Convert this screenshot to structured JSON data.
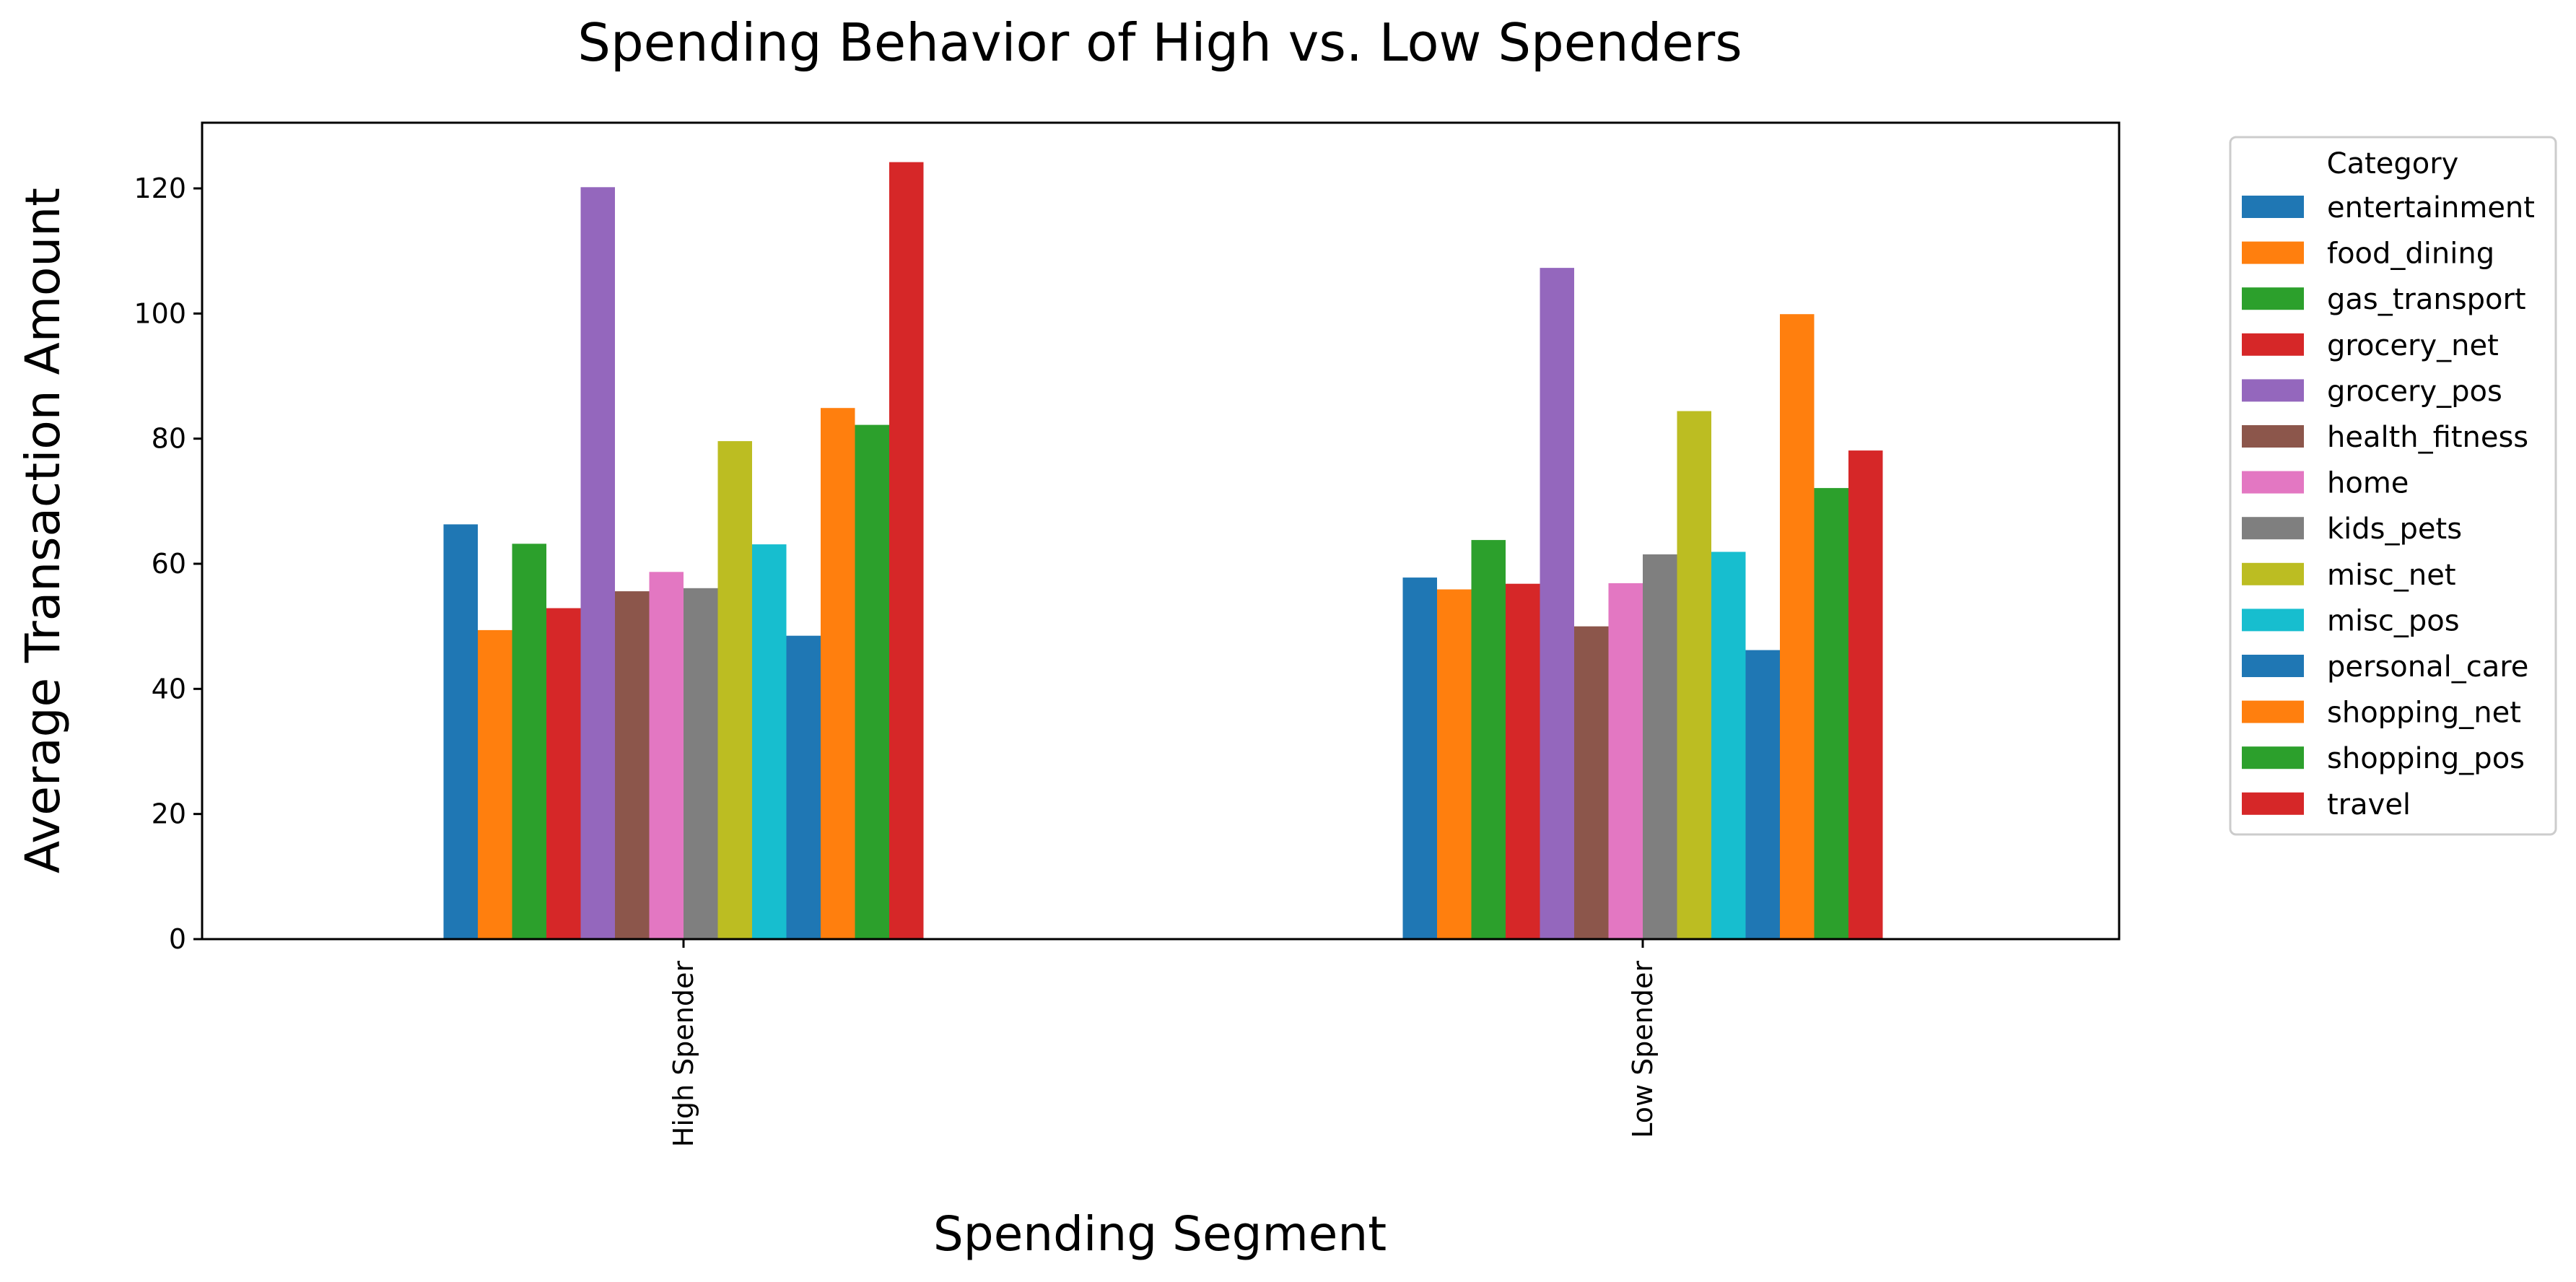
{
  "chart_data": {
    "type": "bar",
    "title": "Spending Behavior of High vs. Low Spenders",
    "xlabel": "Spending Segment",
    "ylabel": "Average Transaction Amount",
    "categories": [
      "High Spender",
      "Low Spender"
    ],
    "yticks": [
      "0",
      "20",
      "40",
      "60",
      "80",
      "100",
      "120"
    ],
    "ylim": [
      0,
      130.5
    ],
    "grid": false,
    "legend": {
      "title": "Category",
      "placement": "outside right"
    },
    "series": [
      {
        "name": "entertainment",
        "values": [
          66.3,
          57.8
        ],
        "color": "#1f77b4"
      },
      {
        "name": "food_dining",
        "values": [
          49.4,
          55.9
        ],
        "color": "#ff7f0e"
      },
      {
        "name": "gas_transport",
        "values": [
          63.2,
          63.8
        ],
        "color": "#2ca02c"
      },
      {
        "name": "grocery_net",
        "values": [
          52.9,
          56.8
        ],
        "color": "#d62728"
      },
      {
        "name": "grocery_pos",
        "values": [
          120.2,
          107.3
        ],
        "color": "#9467bd"
      },
      {
        "name": "health_fitness",
        "values": [
          55.6,
          50.0
        ],
        "color": "#8c564b"
      },
      {
        "name": "home",
        "values": [
          58.7,
          56.9
        ],
        "color": "#e377c2"
      },
      {
        "name": "kids_pets",
        "values": [
          56.1,
          61.5
        ],
        "color": "#7f7f7f"
      },
      {
        "name": "misc_net",
        "values": [
          79.6,
          84.4
        ],
        "color": "#bcbd22"
      },
      {
        "name": "misc_pos",
        "values": [
          63.1,
          61.9
        ],
        "color": "#17becf"
      },
      {
        "name": "personal_care",
        "values": [
          48.5,
          46.2
        ],
        "color": "#1f77b4"
      },
      {
        "name": "shopping_net",
        "values": [
          84.9,
          99.9
        ],
        "color": "#ff7f0e"
      },
      {
        "name": "shopping_pos",
        "values": [
          82.2,
          72.1
        ],
        "color": "#2ca02c"
      },
      {
        "name": "travel",
        "values": [
          124.2,
          78.1
        ],
        "color": "#d62728"
      }
    ]
  }
}
